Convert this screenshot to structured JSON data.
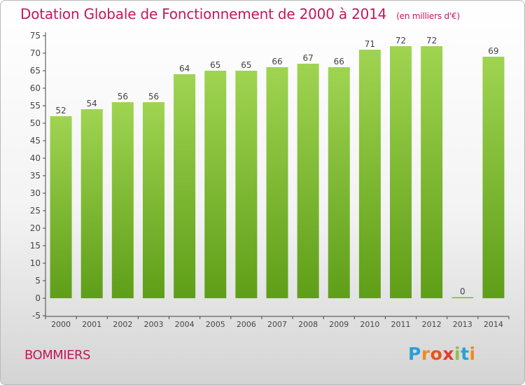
{
  "title": "Dotation Globale de Fonctionnement de 2000 à 2014",
  "unit_note": "(en milliers d'€)",
  "place_name": "BOMMIERS",
  "logo": {
    "letters": [
      "P",
      "r",
      "o",
      "x",
      "i",
      "t",
      "i"
    ],
    "colors": [
      "#2b9fd9",
      "#f08a1c",
      "#e8541c",
      "#e63b2e",
      "#8bc34a",
      "#2b9fd9",
      "#f08a1c"
    ]
  },
  "chart_data": {
    "type": "bar",
    "categories": [
      "2000",
      "2001",
      "2002",
      "2003",
      "2004",
      "2005",
      "2006",
      "2007",
      "2008",
      "2009",
      "2010",
      "2011",
      "2012",
      "2013",
      "2014"
    ],
    "values": [
      52,
      54,
      56,
      56,
      64,
      65,
      65,
      66,
      67,
      66,
      71,
      72,
      72,
      0,
      69
    ],
    "data_labels": [
      "52",
      "54",
      "56",
      "56",
      "64",
      "65",
      "65",
      "66",
      "67",
      "66",
      "71",
      "72",
      "72",
      "0",
      "69"
    ],
    "y_ticks": [
      "-5",
      "0",
      "5",
      "10",
      "15",
      "20",
      "25",
      "30",
      "35",
      "40",
      "45",
      "50",
      "55",
      "60",
      "65",
      "70",
      "75"
    ],
    "ylim": [
      -5,
      75
    ],
    "grid": false,
    "bar_color": "#8cc63f"
  }
}
